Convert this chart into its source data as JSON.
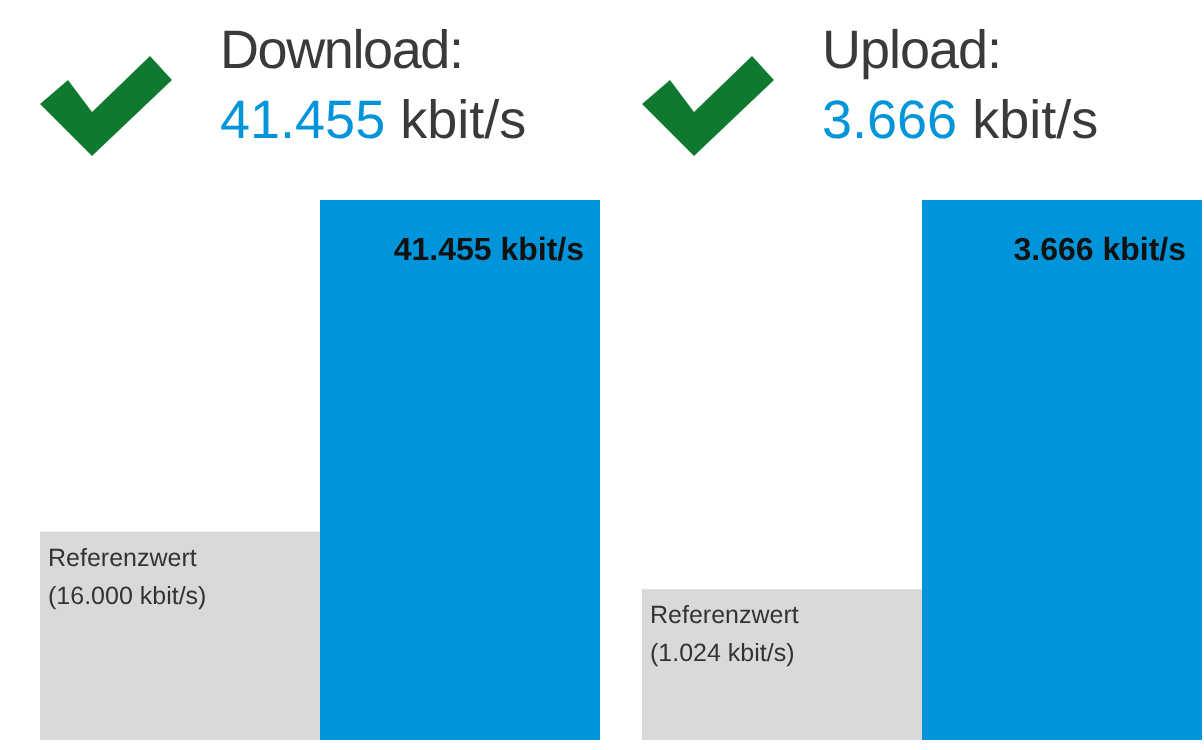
{
  "chart_data": [
    {
      "type": "bar",
      "title": "Download:",
      "subtitle": "41.455 kbit/s",
      "categories": [
        null,
        null
      ],
      "values": [
        16000,
        41455
      ],
      "colors": [
        "#d9d9d9",
        "#0095da"
      ],
      "value_labels": [
        "Referenzwert\n(16.000 kbit/s)",
        "41.455 kbit/s"
      ]
    },
    {
      "type": "bar",
      "title": "Upload:",
      "subtitle": "3.666 kbit/s",
      "categories": [
        null,
        null
      ],
      "values": [
        1024,
        3666
      ],
      "colors": [
        "#d9d9d9",
        "#0095da"
      ],
      "value_labels": [
        "Referenzwert\n(1.024 kbit/s)",
        "3.666 kbit/s"
      ]
    }
  ]
}
